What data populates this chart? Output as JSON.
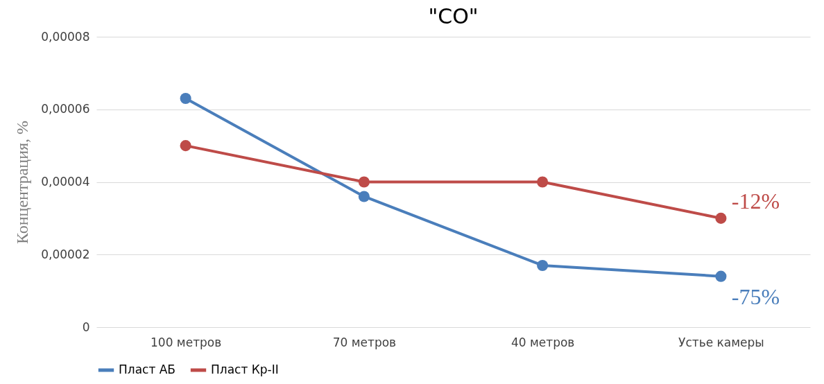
{
  "chart_data": {
    "type": "line",
    "title": "\"CO\"",
    "ylabel": "Концентрация, %",
    "categories": [
      "100 метров",
      "70 метров",
      "40 метров",
      "Устье камеры"
    ],
    "series": [
      {
        "name": "Пласт АБ",
        "color": "#4a7ebb",
        "values": [
          6.3e-05,
          3.6e-05,
          1.7e-05,
          1.4e-05
        ]
      },
      {
        "name": "Пласт Кр-II",
        "color": "#be4b48",
        "values": [
          5e-05,
          4e-05,
          4e-05,
          3e-05
        ]
      }
    ],
    "ylim": [
      0,
      8e-05
    ],
    "yticks": [
      0,
      {
        "value": 2e-05,
        "label": "0,00002"
      },
      {
        "value": 4e-05,
        "label": "0,00004"
      },
      {
        "value": 6e-05,
        "label": "0,00006"
      },
      {
        "value": 8e-05,
        "label": "0,00008"
      }
    ],
    "annotations": [
      {
        "text": "-12%",
        "x": "Устье камеры",
        "y": 3e-05
      },
      {
        "text": "-75%",
        "x": "Устье камеры",
        "y": 1.4e-05
      }
    ],
    "grid": "y",
    "legend": "bottom",
    "marker": "circle",
    "line_style": "solid"
  }
}
